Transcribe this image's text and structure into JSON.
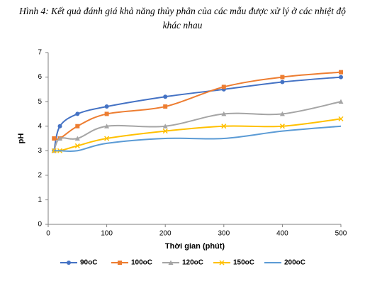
{
  "chart_data": {
    "type": "line",
    "title": "Hình 4: Kết quả đánh giá khả năng thủy phân của các mẫu được xử lý ở các nhiệt độ khác nhau",
    "x_label": "Thời gian (phút)",
    "y_label": "pH",
    "x": [
      10,
      20,
      50,
      100,
      200,
      300,
      400,
      500
    ],
    "xlim": [
      0,
      500
    ],
    "xticks": [
      0,
      100,
      200,
      300,
      400,
      500
    ],
    "ylim": [
      0,
      7
    ],
    "yticks": [
      0,
      1,
      2,
      3,
      4,
      5,
      6,
      7
    ],
    "grid": false,
    "smooth": true,
    "legend": "bottom",
    "series": [
      {
        "name": "90oC",
        "color": "#4472c4",
        "marker": "circle",
        "values": [
          3,
          4,
          4.5,
          4.8,
          5.2,
          5.5,
          5.8,
          6
        ]
      },
      {
        "name": "100oC",
        "color": "#ed7d31",
        "marker": "square",
        "values": [
          3.5,
          3.5,
          4,
          4.5,
          4.8,
          5.6,
          6,
          6.2
        ]
      },
      {
        "name": "120oC",
        "color": "#a5a5a5",
        "marker": "triangle",
        "values": [
          3,
          3.5,
          3.5,
          4,
          4,
          4.5,
          4.5,
          5
        ]
      },
      {
        "name": "150oC",
        "color": "#ffc000",
        "marker": "x",
        "values": [
          3,
          3,
          3.2,
          3.5,
          3.8,
          4,
          4,
          4.3
        ]
      },
      {
        "name": "200oC",
        "color": "#5b9bd5",
        "marker": "none",
        "values": [
          3,
          3,
          3,
          3.3,
          3.5,
          3.5,
          3.8,
          4
        ]
      }
    ]
  }
}
